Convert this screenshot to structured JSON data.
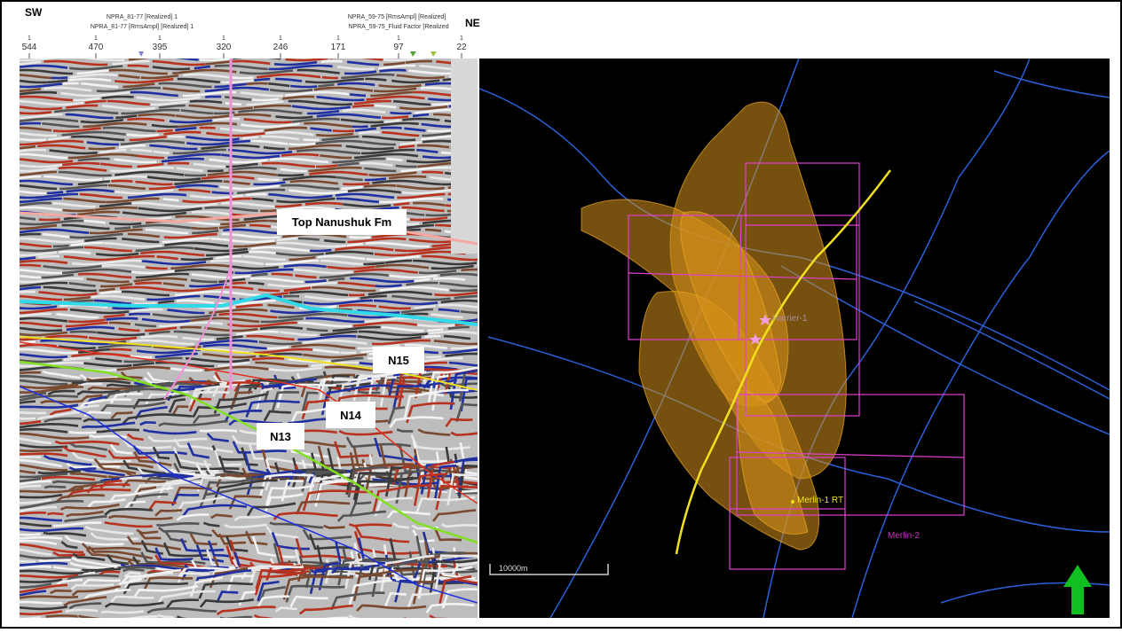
{
  "section": {
    "left_end": "SW",
    "right_end": "NE",
    "well_labels": [
      "NPRA_81-77 [Realized] 1",
      "NPRA_81-77 [RmsAmpl] [Realized] 1",
      "NPRA_59-75 [RmsAmpl] [Realized]",
      "NPRA_59-75_Fluid Factor [Realized"
    ],
    "traces": [
      {
        "line": "1",
        "trace": "544"
      },
      {
        "line": "1",
        "trace": "470"
      },
      {
        "line": "1",
        "trace": "395"
      },
      {
        "line": "1",
        "trace": "320"
      },
      {
        "line": "1",
        "trace": "246"
      },
      {
        "line": "1",
        "trace": "171"
      },
      {
        "line": "1",
        "trace": "97"
      },
      {
        "line": "1",
        "trace": "22"
      }
    ],
    "horizons": [
      "Top Nanushuk Fm",
      "N15",
      "N14",
      "N13"
    ]
  },
  "map": {
    "wells": [
      "Harrier-1",
      "Merlin-1 RT",
      "Merlin-2"
    ],
    "scale_bar": "10000m"
  }
}
